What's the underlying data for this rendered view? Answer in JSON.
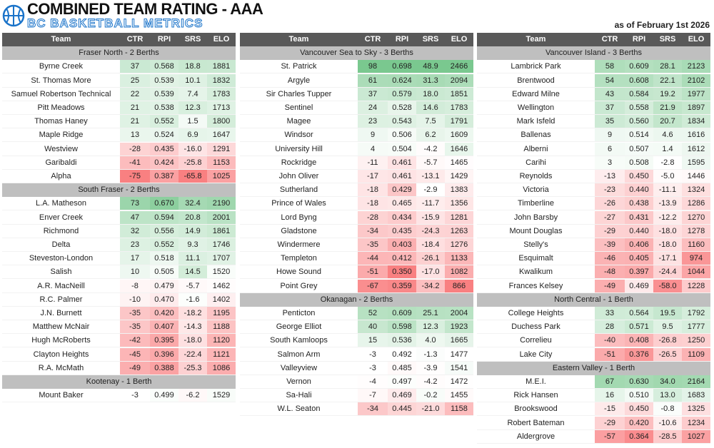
{
  "header": {
    "title": "COMBINED TEAM RATING - AAA",
    "subtitle": "BC BASKETBALL METRICS",
    "date": "as of February 1st 2026"
  },
  "columns": [
    "Team",
    "CTR",
    "RPI",
    "SRS",
    "ELO"
  ],
  "panels": [
    {
      "groups": [
        {
          "title": "Fraser North - 2 Berths",
          "rows": [
            [
              "Byrne Creek",
              "37",
              "0.568",
              "18.8",
              "1881"
            ],
            [
              "St. Thomas More",
              "25",
              "0.539",
              "10.1",
              "1832"
            ],
            [
              "Samuel Robertson Technical",
              "22",
              "0.539",
              "7.4",
              "1783"
            ],
            [
              "Pitt Meadows",
              "21",
              "0.538",
              "12.3",
              "1713"
            ],
            [
              "Thomas Haney",
              "21",
              "0.552",
              "1.5",
              "1800"
            ],
            [
              "Maple Ridge",
              "13",
              "0.524",
              "6.9",
              "1647"
            ],
            [
              "Westview",
              "-28",
              "0.435",
              "-16.0",
              "1291"
            ],
            [
              "Garibaldi",
              "-41",
              "0.424",
              "-25.8",
              "1153"
            ],
            [
              "Alpha",
              "-75",
              "0.387",
              "-65.8",
              "1025"
            ]
          ]
        },
        {
          "title": "South Fraser - 2 Berths",
          "rows": [
            [
              "L.A. Matheson",
              "73",
              "0.670",
              "32.4",
              "2190"
            ],
            [
              "Enver Creek",
              "47",
              "0.594",
              "20.8",
              "2001"
            ],
            [
              "Richmond",
              "32",
              "0.556",
              "14.9",
              "1861"
            ],
            [
              "Delta",
              "23",
              "0.552",
              "9.3",
              "1746"
            ],
            [
              "Steveston-London",
              "17",
              "0.518",
              "11.1",
              "1707"
            ],
            [
              "Salish",
              "10",
              "0.505",
              "14.5",
              "1520"
            ],
            [
              "A.R. MacNeill",
              "-8",
              "0.479",
              "-5.7",
              "1462"
            ],
            [
              "R.C. Palmer",
              "-10",
              "0.470",
              "-1.6",
              "1402"
            ],
            [
              "J.N. Burnett",
              "-35",
              "0.420",
              "-18.2",
              "1195"
            ],
            [
              "Matthew McNair",
              "-35",
              "0.407",
              "-14.3",
              "1188"
            ],
            [
              "Hugh McRoberts",
              "-42",
              "0.395",
              "-18.0",
              "1120"
            ],
            [
              "Clayton Heights",
              "-45",
              "0.396",
              "-22.4",
              "1121"
            ],
            [
              "R.A. McMath",
              "-49",
              "0.388",
              "-25.3",
              "1086"
            ]
          ]
        },
        {
          "title": "Kootenay - 1 Berth",
          "rows": [
            [
              "Mount Baker",
              "-3",
              "0.499",
              "-6.2",
              "1529"
            ]
          ]
        }
      ]
    },
    {
      "groups": [
        {
          "title": "Vancouver Sea to Sky - 3 Berths",
          "rows": [
            [
              "St. Patrick",
              "98",
              "0.698",
              "48.9",
              "2466"
            ],
            [
              "Argyle",
              "61",
              "0.624",
              "31.3",
              "2094"
            ],
            [
              "Sir Charles Tupper",
              "37",
              "0.579",
              "18.0",
              "1851"
            ],
            [
              "Sentinel",
              "24",
              "0.528",
              "14.6",
              "1783"
            ],
            [
              "Magee",
              "23",
              "0.543",
              "7.5",
              "1791"
            ],
            [
              "Windsor",
              "9",
              "0.506",
              "6.2",
              "1609"
            ],
            [
              "University Hill",
              "4",
              "0.504",
              "-4.2",
              "1646"
            ],
            [
              "Rockridge",
              "-11",
              "0.461",
              "-5.7",
              "1465"
            ],
            [
              "John Oliver",
              "-17",
              "0.461",
              "-13.1",
              "1429"
            ],
            [
              "Sutherland",
              "-18",
              "0.429",
              "-2.9",
              "1383"
            ],
            [
              "Prince of Wales",
              "-18",
              "0.465",
              "-11.7",
              "1356"
            ],
            [
              "Lord Byng",
              "-28",
              "0.434",
              "-15.9",
              "1281"
            ],
            [
              "Gladstone",
              "-34",
              "0.435",
              "-24.3",
              "1263"
            ],
            [
              "Windermere",
              "-35",
              "0.403",
              "-18.4",
              "1276"
            ],
            [
              "Templeton",
              "-44",
              "0.412",
              "-26.1",
              "1133"
            ],
            [
              "Howe Sound",
              "-51",
              "0.350",
              "-17.0",
              "1082"
            ],
            [
              "Point Grey",
              "-67",
              "0.359",
              "-34.2",
              "866"
            ]
          ]
        },
        {
          "title": "Okanagan - 2 Berths",
          "rows": [
            [
              "Penticton",
              "52",
              "0.609",
              "25.1",
              "2004"
            ],
            [
              "George Elliot",
              "40",
              "0.598",
              "12.3",
              "1923"
            ],
            [
              "South Kamloops",
              "15",
              "0.536",
              "4.0",
              "1665"
            ],
            [
              "Salmon Arm",
              "-3",
              "0.492",
              "-1.3",
              "1477"
            ],
            [
              "Valleyview",
              "-3",
              "0.485",
              "-3.9",
              "1541"
            ],
            [
              "Vernon",
              "-4",
              "0.497",
              "-4.2",
              "1472"
            ],
            [
              "Sa-Hali",
              "-7",
              "0.469",
              "-0.2",
              "1455"
            ],
            [
              "W.L. Seaton",
              "-34",
              "0.445",
              "-21.0",
              "1158"
            ]
          ]
        }
      ]
    },
    {
      "groups": [
        {
          "title": "Vancouver Island - 3 Berths",
          "rows": [
            [
              "Lambrick Park",
              "58",
              "0.609",
              "28.1",
              "2123"
            ],
            [
              "Brentwood",
              "54",
              "0.608",
              "22.1",
              "2102"
            ],
            [
              "Edward Milne",
              "43",
              "0.584",
              "19.2",
              "1977"
            ],
            [
              "Wellington",
              "37",
              "0.558",
              "21.9",
              "1897"
            ],
            [
              "Mark Isfeld",
              "35",
              "0.560",
              "20.7",
              "1834"
            ],
            [
              "Ballenas",
              "9",
              "0.514",
              "4.6",
              "1616"
            ],
            [
              "Alberni",
              "6",
              "0.507",
              "1.4",
              "1612"
            ],
            [
              "Carihi",
              "3",
              "0.508",
              "-2.8",
              "1595"
            ],
            [
              "Reynolds",
              "-13",
              "0.450",
              "-5.0",
              "1446"
            ],
            [
              "Victoria",
              "-23",
              "0.440",
              "-11.1",
              "1324"
            ],
            [
              "Timberline",
              "-26",
              "0.438",
              "-13.9",
              "1286"
            ],
            [
              "John Barsby",
              "-27",
              "0.431",
              "-12.2",
              "1270"
            ],
            [
              "Mount Douglas",
              "-29",
              "0.440",
              "-18.0",
              "1278"
            ],
            [
              "Stelly's",
              "-39",
              "0.406",
              "-18.0",
              "1160"
            ],
            [
              "Esquimalt",
              "-46",
              "0.405",
              "-17.1",
              "974"
            ],
            [
              "Kwalikum",
              "-48",
              "0.397",
              "-24.4",
              "1044"
            ],
            [
              "Frances Kelsey",
              "-49",
              "0.469",
              "-58.0",
              "1228"
            ]
          ]
        },
        {
          "title": "North Central - 1 Berth",
          "rows": [
            [
              "College Heights",
              "33",
              "0.564",
              "19.5",
              "1792"
            ],
            [
              "Duchess Park",
              "28",
              "0.571",
              "9.5",
              "1777"
            ],
            [
              "Correlieu",
              "-40",
              "0.408",
              "-26.8",
              "1250"
            ],
            [
              "Lake City",
              "-51",
              "0.376",
              "-26.5",
              "1109"
            ]
          ]
        },
        {
          "title": "Eastern Valley - 1 Berth",
          "rows": [
            [
              "M.E.I.",
              "67",
              "0.630",
              "34.0",
              "2164"
            ],
            [
              "Rick Hansen",
              "16",
              "0.510",
              "13.0",
              "1683"
            ],
            [
              "Brookswood",
              "-15",
              "0.450",
              "-0.8",
              "1325"
            ],
            [
              "Robert Bateman",
              "-29",
              "0.420",
              "-10.6",
              "1234"
            ],
            [
              "Aldergrove",
              "-57",
              "0.364",
              "-28.5",
              "1027"
            ]
          ]
        }
      ]
    }
  ]
}
